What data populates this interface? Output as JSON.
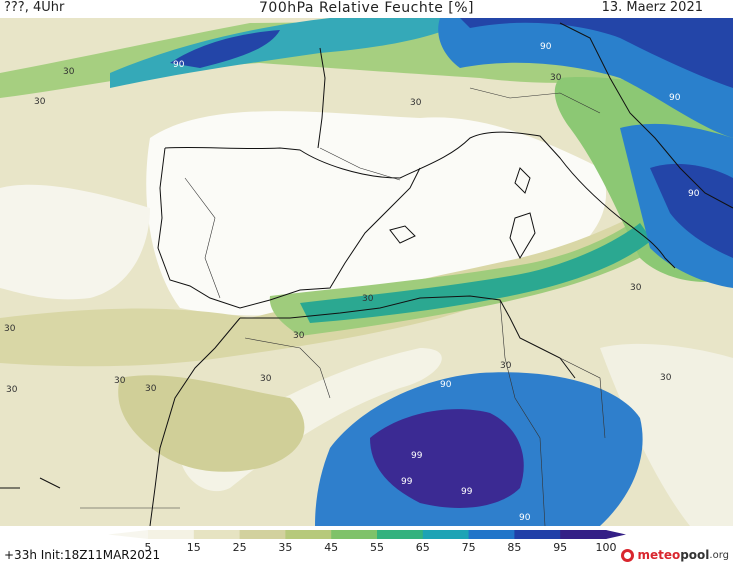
{
  "header": {
    "left": "???, 4Uhr",
    "title": "700hPa Relative Feuchte [%]",
    "date": "13. Maerz 2021"
  },
  "map": {
    "contour_labels": [
      "90",
      "30",
      "30",
      "90",
      "30",
      "30",
      "90",
      "30",
      "30",
      "30",
      "30",
      "30",
      "30",
      "30",
      "30",
      "30",
      "30",
      "90",
      "99",
      "99",
      "90",
      "99",
      "90"
    ]
  },
  "legend": {
    "ticks": [
      "5",
      "15",
      "25",
      "35",
      "45",
      "55",
      "65",
      "75",
      "85",
      "95",
      "100"
    ],
    "colors": [
      "#ffffff",
      "#f4f2e4",
      "#e6e3c2",
      "#d2d19e",
      "#b6c97b",
      "#7fc26a",
      "#34b27e",
      "#1da3b5",
      "#2175c9",
      "#2140a8",
      "#341f86"
    ]
  },
  "footer": {
    "init": "+33h  Init:18Z11MAR2021",
    "logo_brand": "meteo",
    "logo_rest": "pool",
    "logo_tld": ".org"
  }
}
